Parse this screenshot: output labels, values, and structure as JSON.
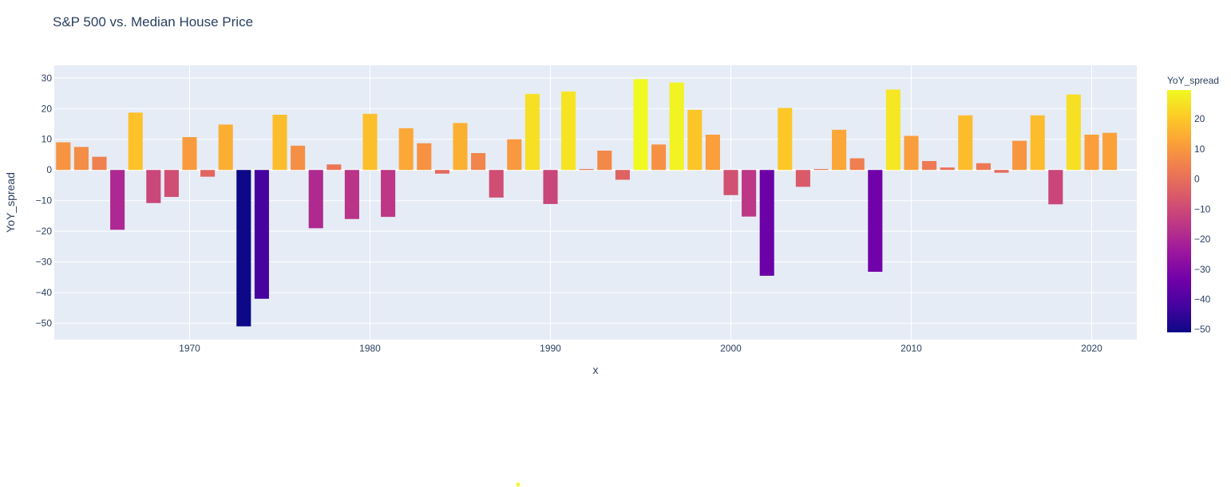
{
  "chart_data": {
    "type": "bar",
    "title": "S&P 500 vs. Median House Price",
    "xlabel": "x",
    "ylabel": "YoY_spread",
    "x": [
      1963,
      1964,
      1965,
      1966,
      1967,
      1968,
      1969,
      1970,
      1971,
      1972,
      1973,
      1974,
      1975,
      1976,
      1977,
      1978,
      1979,
      1980,
      1981,
      1982,
      1983,
      1984,
      1985,
      1986,
      1987,
      1988,
      1989,
      1990,
      1991,
      1992,
      1993,
      1994,
      1995,
      1996,
      1997,
      1998,
      1999,
      2000,
      2001,
      2002,
      2003,
      2004,
      2005,
      2006,
      2007,
      2008,
      2009,
      2010,
      2011,
      2012,
      2013,
      2014,
      2015,
      2016,
      2017,
      2018,
      2019,
      2020,
      2021,
      2022
    ],
    "values": [
      9.0,
      7.5,
      4.3,
      -19.5,
      18.7,
      -10.8,
      -8.8,
      10.7,
      -2.2,
      14.8,
      -51.0,
      -42.0,
      18.0,
      7.9,
      -19.0,
      1.8,
      -16.0,
      18.3,
      -15.3,
      13.6,
      8.7,
      -1.2,
      15.3,
      5.5,
      -9.0,
      10.0,
      24.8,
      -11.1,
      25.6,
      0.3,
      6.3,
      -3.2,
      29.6,
      8.3,
      28.5,
      19.6,
      11.5,
      -8.2,
      -15.2,
      -34.5,
      20.2,
      -5.5,
      0.3,
      13.1,
      3.8,
      -33.2,
      26.2,
      11.1,
      2.9,
      0.8,
      17.8,
      2.2,
      -0.9,
      9.5,
      17.8,
      -11.2,
      24.6,
      11.5,
      12.1,
      0.0
    ],
    "xtick_values": [
      1970,
      1980,
      1990,
      2000,
      2010,
      2020
    ],
    "xtick_labels": [
      "1970",
      "1980",
      "1990",
      "2000",
      "2010",
      "2020"
    ],
    "ytick_values": [
      30,
      20,
      10,
      0,
      -10,
      -20,
      -30,
      -40,
      -50
    ],
    "ytick_labels": [
      "30",
      "20",
      "10",
      "0",
      "−10",
      "−20",
      "−30",
      "−40",
      "−50"
    ],
    "xlim": [
      1962.5,
      2022.5
    ],
    "ylim": [
      -55.3,
      34.1
    ],
    "grid": true,
    "colorbar": {
      "title": "YoY_spread",
      "colorscale": "plasma",
      "range": [
        -51.0,
        29.6
      ],
      "tick_values": [
        20,
        10,
        0,
        -10,
        -20,
        -30,
        -40,
        -50
      ],
      "tick_labels": [
        "20",
        "10",
        "0",
        "−10",
        "−20",
        "−30",
        "−40",
        "−50"
      ]
    },
    "colors": {
      "plot_background": "#e5ecf6",
      "gridline": "#ffffff",
      "text": "#2a3f5f",
      "stray_marker": "#f0f921"
    }
  }
}
